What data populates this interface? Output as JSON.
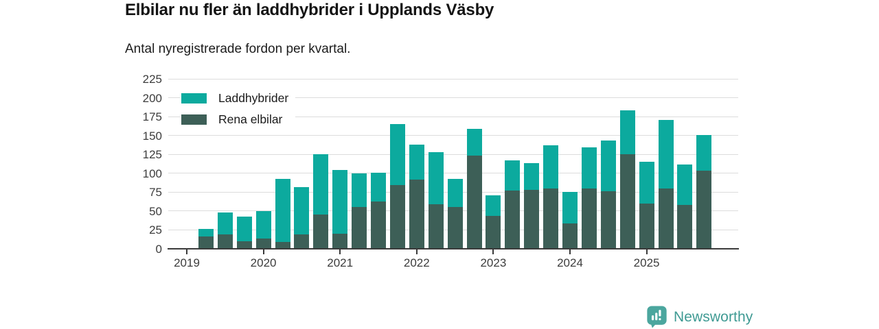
{
  "header": {
    "title": "Elbilar nu fler än laddhybrider i Upplands Väsby",
    "subtitle": "Antal nyregistrerade fordon per kvartal."
  },
  "chart_data": {
    "type": "bar",
    "stacked": true,
    "title": "Elbilar nu fler än laddhybrider i Upplands Väsby",
    "subtitle": "Antal nyregistrerade fordon per kvartal.",
    "xlabel": "",
    "ylabel": "",
    "ylim": [
      0,
      225
    ],
    "y_ticks": [
      0,
      25,
      50,
      75,
      100,
      125,
      150,
      175,
      200,
      225
    ],
    "x_tick_labels": [
      "2019",
      "2020",
      "2021",
      "2022",
      "2023",
      "2024",
      "2025"
    ],
    "grid": true,
    "legend_position": "top-left",
    "categories": [
      "2019 Q2",
      "2019 Q3",
      "2019 Q4",
      "2020 Q1",
      "2020 Q2",
      "2020 Q3",
      "2020 Q4",
      "2021 Q1",
      "2021 Q2",
      "2021 Q3",
      "2021 Q4",
      "2022 Q1",
      "2022 Q2",
      "2022 Q3",
      "2022 Q4",
      "2023 Q1",
      "2023 Q2",
      "2023 Q3",
      "2023 Q4",
      "2024 Q1",
      "2024 Q2",
      "2024 Q3",
      "2024 Q4",
      "2025 Q1",
      "2025 Q2",
      "2025 Q3",
      "2025 Q4"
    ],
    "series": [
      {
        "name": "Laddhybrider",
        "color": "#0caa9e",
        "values": [
          10,
          29,
          33,
          36,
          84,
          63,
          80,
          84,
          45,
          38,
          81,
          46,
          69,
          38,
          36,
          27,
          40,
          35,
          57,
          41,
          54,
          67,
          58,
          55,
          91,
          54,
          48
        ]
      },
      {
        "name": "Rena elbilar",
        "color": "#3d5f57",
        "values": [
          16,
          19,
          10,
          14,
          9,
          19,
          45,
          20,
          55,
          63,
          84,
          92,
          59,
          55,
          123,
          44,
          77,
          78,
          80,
          34,
          80,
          76,
          125,
          60,
          80,
          58,
          103
        ]
      }
    ],
    "totals": [
      26,
      48,
      43,
      50,
      93,
      82,
      125,
      104,
      100,
      101,
      165,
      138,
      128,
      93,
      159,
      71,
      117,
      113,
      137,
      75,
      134,
      143,
      183,
      115,
      171,
      112,
      151
    ]
  },
  "branding": {
    "logo_text": "Newsworthy",
    "logo_badge_color": "#4ba69e",
    "logo_text_color": "#3f9a93"
  },
  "colors": {
    "laddhybrider": "#0caa9e",
    "rena_elbilar": "#3d5f57",
    "gridline": "#dcdcdc",
    "axis": "#3a3a3a",
    "text": "#1c1c1c"
  }
}
